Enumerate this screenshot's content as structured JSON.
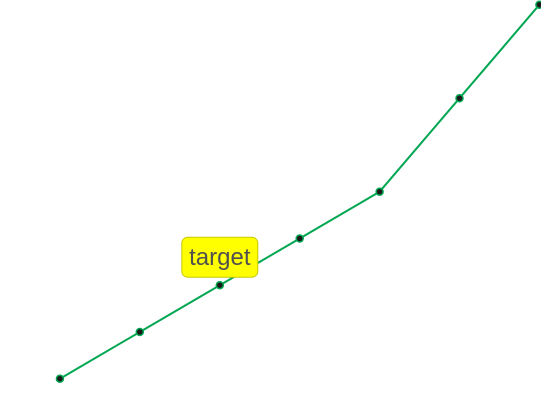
{
  "chart_data": {
    "type": "line",
    "title": "",
    "xlabel": "",
    "ylabel": "",
    "x": [
      0,
      1,
      2,
      3,
      4,
      5,
      6
    ],
    "series": [
      {
        "values": [
          0,
          1,
          2,
          3,
          4,
          6,
          8
        ],
        "color": "#00a651",
        "marker_fill": "#1a1a1a"
      }
    ],
    "xlim": [
      -0.75,
      6.02
    ],
    "ylim": [
      -0.84,
      8.1
    ],
    "grid": false,
    "legend": "none",
    "annotations": [
      {
        "text": "target",
        "point_index": 2,
        "background": "#ffff00",
        "border": "#c8c800",
        "text_color": "#505050"
      }
    ]
  }
}
